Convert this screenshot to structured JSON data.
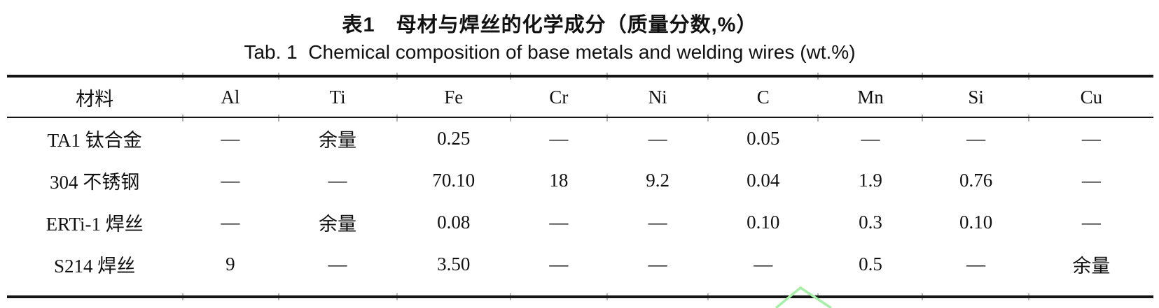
{
  "captions": {
    "zh": "表1　母材与焊丝的化学成分（质量分数,%）",
    "en": "Tab. 1  Chemical composition of base metals and welding wires (wt.%)"
  },
  "table": {
    "headers": [
      "材料",
      "Al",
      "Ti",
      "Fe",
      "Cr",
      "Ni",
      "C",
      "Mn",
      "Si",
      "Cu"
    ],
    "rows": [
      [
        "TA1 钛合金",
        "—",
        "余量",
        "0.25",
        "—",
        "—",
        "0.05",
        "—",
        "—",
        "—"
      ],
      [
        "304 不锈钢",
        "—",
        "—",
        "70.10",
        "18",
        "9.2",
        "0.04",
        "1.9",
        "0.76",
        "—"
      ],
      [
        "ERTi-1 焊丝",
        "—",
        "余量",
        "0.08",
        "—",
        "—",
        "0.10",
        "0.3",
        "0.10",
        "—"
      ],
      [
        "S214 焊丝",
        "9",
        "—",
        "3.50",
        "—",
        "—",
        "—",
        "0.5",
        "—",
        "余量"
      ]
    ]
  },
  "watermark": {
    "shape": "triangle-outline",
    "color": "#a6efa6"
  }
}
